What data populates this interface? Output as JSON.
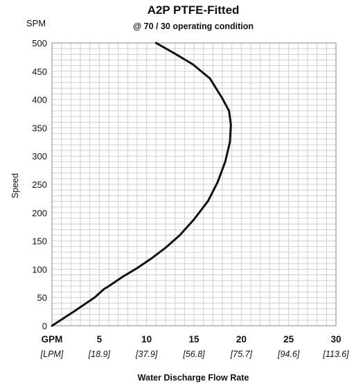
{
  "chart_data": {
    "type": "line",
    "title": "A2P PTFE-Fitted",
    "subtitle": "@ 70 / 30 operating condition",
    "ylabel": "Speed",
    "y_unit_label": "SPM",
    "xlabel": "Water Discharge Flow Rate",
    "x_unit_label": "GPM",
    "x_secondary_unit_label": "[LPM]",
    "xlim": [
      0,
      30
    ],
    "ylim": [
      0,
      500
    ],
    "x_ticks": [
      5,
      10,
      15,
      20,
      25,
      30
    ],
    "x_secondary_ticks": [
      "[18.9]",
      "[37.9]",
      "[56.8]",
      "[75.7]",
      "[94.6]",
      "[113.6]"
    ],
    "y_ticks": [
      0,
      50,
      100,
      150,
      200,
      250,
      300,
      350,
      400,
      450,
      500
    ],
    "grid": true,
    "series": [
      {
        "x": [
          0,
          2.3,
          4.5,
          5.5,
          6,
          7.5,
          9,
          10.5,
          12,
          13.5,
          15,
          16.5,
          17.5,
          18.3,
          18.8,
          18.9,
          18.7,
          18,
          16.7,
          14.9,
          13,
          11
        ],
        "y": [
          0,
          25,
          50,
          65,
          70,
          87,
          102,
          119,
          138,
          160,
          188,
          221,
          254,
          290,
          325,
          355,
          380,
          402,
          437,
          462,
          481,
          500
        ],
        "color": "#111111"
      }
    ]
  }
}
